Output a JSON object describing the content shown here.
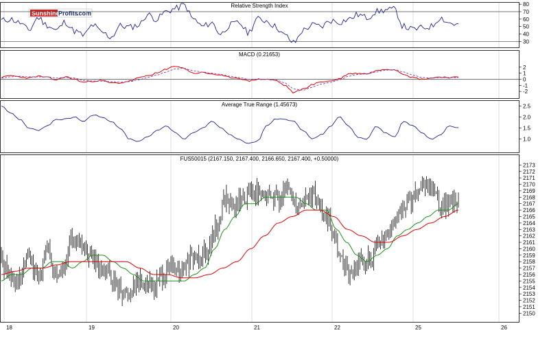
{
  "logo": {
    "word1": "Sunshine",
    "word2": "Profits",
    "suffix": ".com"
  },
  "colors": {
    "price": "#000000",
    "indicator": "#1f1f8f",
    "ma_fast": "#1e8f1e",
    "ma_slow": "#e00000",
    "grid": "#c8c8c8",
    "signal": "#7a3fb0"
  },
  "x_axis": {
    "labels": [
      "18",
      "19",
      "20",
      "21",
      "22",
      "25",
      "26"
    ]
  },
  "chart_data": [
    {
      "type": "line",
      "title": "Relative Strength Index",
      "ylim": [
        22,
        82
      ],
      "yticks": [
        30,
        40,
        50,
        60,
        70,
        80
      ],
      "reference_lines": [
        30,
        70
      ],
      "series": [
        {
          "values": [
            58,
            60,
            55,
            45,
            62,
            52,
            45,
            56,
            44,
            38,
            52,
            42,
            36,
            51,
            49,
            52,
            66,
            60,
            70,
            74,
            79,
            60,
            50,
            55,
            40,
            52,
            55,
            42,
            60,
            58,
            50,
            38,
            28,
            45,
            52,
            50,
            58,
            56,
            60,
            66,
            62,
            70,
            72,
            73,
            50,
            46,
            48,
            50,
            62,
            55,
            52
          ]
        }
      ]
    },
    {
      "type": "line",
      "title": "MACD (0.21653)",
      "ylim": [
        -3,
        3
      ],
      "yticks": [
        -2,
        -1,
        0,
        1,
        2
      ],
      "reference_lines": [
        0
      ],
      "series": [
        {
          "values": [
            0.3,
            0.6,
            0.4,
            0.2,
            0.5,
            0.3,
            -0.1,
            0.4,
            0.0,
            -0.5,
            -0.3,
            -0.2,
            -0.6,
            -0.6,
            -0.3,
            0.2,
            0.6,
            1.0,
            1.6,
            2.2,
            1.8,
            1.0,
            1.1,
            0.9,
            0.6,
            0.3,
            0.2,
            -0.3,
            0.0,
            0.0,
            -0.2,
            -1.0,
            -2.2,
            -1.6,
            -0.9,
            -0.4,
            -0.3,
            0.1,
            0.9,
            1.0,
            0.9,
            1.4,
            1.7,
            1.6,
            0.9,
            0.3,
            0.0,
            0.2,
            0.4,
            0.3,
            0.3
          ]
        },
        {
          "values": [
            0.2,
            0.4,
            0.5,
            0.4,
            0.4,
            0.4,
            0.2,
            0.3,
            0.2,
            -0.2,
            -0.3,
            -0.3,
            -0.4,
            -0.5,
            -0.4,
            -0.1,
            0.3,
            0.7,
            1.2,
            1.7,
            1.8,
            1.4,
            1.2,
            1.0,
            0.8,
            0.5,
            0.3,
            0.0,
            0.0,
            0.0,
            -0.1,
            -0.6,
            -1.6,
            -1.8,
            -1.3,
            -0.8,
            -0.5,
            -0.1,
            0.5,
            0.8,
            0.9,
            1.2,
            1.5,
            1.6,
            1.2,
            0.7,
            0.3,
            0.2,
            0.3,
            0.3,
            0.3
          ]
        }
      ]
    },
    {
      "type": "line",
      "title": "Average True Range (1.45673)",
      "ylim": [
        0.4,
        2.7
      ],
      "yticks": [
        1.0,
        1.5,
        2.0,
        2.5
      ],
      "series": [
        {
          "values": [
            2.5,
            2.2,
            1.9,
            1.5,
            1.4,
            1.6,
            1.9,
            1.9,
            2.0,
            1.8,
            2.1,
            2.0,
            1.8,
            1.5,
            1.0,
            0.9,
            1.1,
            1.4,
            1.6,
            1.3,
            1.0,
            1.3,
            1.5,
            1.8,
            1.5,
            1.2,
            1.0,
            0.8,
            0.9,
            1.6,
            1.9,
            1.9,
            1.8,
            1.4,
            1.0,
            1.2,
            1.6,
            2.0,
            1.6,
            1.1,
            1.0,
            1.6,
            1.3,
            1.1,
            1.8,
            1.6,
            1.3,
            1.0,
            1.2,
            1.6,
            1.5
          ]
        }
      ]
    },
    {
      "type": "line",
      "title": "FUS50015 (2167.150, 2167.400, 2166.650, 2167.400, +0.50000)",
      "ylim": [
        2149.5,
        2174
      ],
      "yticks": [
        2150,
        2151,
        2152,
        2153,
        2154,
        2155,
        2156,
        2157,
        2158,
        2159,
        2160,
        2161,
        2162,
        2163,
        2164,
        2165,
        2166,
        2167,
        2168,
        2169,
        2170,
        2171,
        2172,
        2173
      ],
      "series": [
        {
          "values": [
            2158,
            2156,
            2155,
            2159,
            2155,
            2160,
            2156,
            2157,
            2162,
            2160,
            2159,
            2156,
            2156,
            2154,
            2153,
            2155,
            2155,
            2154,
            2156,
            2157,
            2156,
            2158,
            2159,
            2160,
            2163,
            2168,
            2166,
            2168,
            2169,
            2168,
            2168,
            2168,
            2169,
            2167,
            2168,
            2168,
            2165,
            2163,
            2158,
            2156,
            2158,
            2158,
            2160,
            2162,
            2164,
            2167,
            2168,
            2169,
            2170,
            2167,
            2167,
            2168
          ]
        },
        {
          "values": [
            2155,
            2156,
            2156,
            2157,
            2157,
            2158,
            2158,
            2157,
            2158,
            2159,
            2159,
            2158,
            2157,
            2156,
            2155,
            2155,
            2155,
            2155,
            2155,
            2156,
            2157,
            2160,
            2163,
            2165,
            2167,
            2167,
            2168,
            2168,
            2168,
            2168,
            2167,
            2166,
            2166,
            2163,
            2161,
            2159,
            2158,
            2159,
            2160,
            2162,
            2163,
            2164,
            2165,
            2166,
            2166,
            2167
          ]
        },
        {
          "values": [
            2156,
            2156.5,
            2157,
            2157,
            2157.5,
            2158,
            2158,
            2158,
            2158,
            2158,
            2157,
            2156,
            2156,
            2155.5,
            2155.5,
            2156,
            2157,
            2158,
            2160,
            2162,
            2164,
            2165,
            2166,
            2166,
            2165,
            2163,
            2162,
            2161,
            2161,
            2162,
            2163,
            2164,
            2165,
            2166
          ]
        }
      ]
    }
  ]
}
